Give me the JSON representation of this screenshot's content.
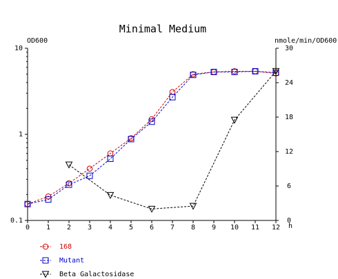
{
  "chart_data": {
    "type": "line",
    "title": "Minimal Medium",
    "xlabel": "h",
    "y_left_label": "OD600",
    "y_right_label": "nmole/min/OD600",
    "xlim": [
      0,
      12
    ],
    "y_left_lim": [
      0.1,
      10
    ],
    "y_left_scale": "log",
    "y_right_lim": [
      0,
      30
    ],
    "x_ticks": [
      "0",
      "1",
      "2",
      "3",
      "4",
      "5",
      "6",
      "7",
      "8",
      "9",
      "10",
      "11",
      "12"
    ],
    "y_left_ticks": [
      {
        "value": 10,
        "label": "10"
      },
      {
        "value": 1,
        "label": "1"
      },
      {
        "value": 0.1,
        "label": "0.1"
      }
    ],
    "y_right_ticks": [
      "0",
      "6",
      "12",
      "18",
      "24",
      "30"
    ],
    "grid": false,
    "legend_position": "bottom-left",
    "series": [
      {
        "name": "168",
        "axis": "left",
        "marker": "circle",
        "color": "#cc0000",
        "line": "dashed",
        "x": [
          0,
          1,
          2,
          3,
          4,
          5,
          6,
          7,
          8,
          9,
          10,
          11,
          12
        ],
        "y": [
          0.155,
          0.19,
          0.27,
          0.4,
          0.6,
          0.9,
          1.5,
          3.1,
          5.0,
          5.3,
          5.4,
          5.4,
          5.1
        ]
      },
      {
        "name": "Mutant",
        "axis": "left",
        "marker": "square",
        "color": "#0000cc",
        "line": "dashed",
        "x": [
          0,
          1,
          2,
          3,
          4,
          5,
          6,
          7,
          8,
          9,
          10,
          11,
          12
        ],
        "y": [
          0.155,
          0.175,
          0.26,
          0.33,
          0.52,
          0.88,
          1.4,
          2.7,
          4.9,
          5.3,
          5.3,
          5.4,
          5.2
        ]
      },
      {
        "name": "Beta Galactosidase",
        "axis": "right",
        "marker": "triangle-down",
        "color": "#000000",
        "line": "dashed",
        "x": [
          2,
          4,
          6,
          8,
          10,
          12
        ],
        "y": [
          9.7,
          4.4,
          2.0,
          2.5,
          17.5,
          26.0
        ]
      }
    ]
  }
}
